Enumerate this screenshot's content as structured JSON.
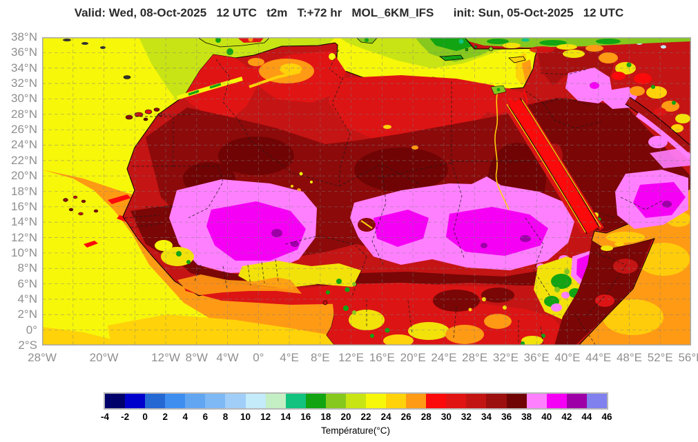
{
  "title": {
    "text": "Valid: Wed, 08-Oct-2025   12 UTC   t2m   T:+72 hr   MOL_6KM_IFS      init: Sun, 05-Oct-2025   12 UTC"
  },
  "axes": {
    "lat_labels": [
      "38°N",
      "36°N",
      "34°N",
      "32°N",
      "30°N",
      "28°N",
      "26°N",
      "24°N",
      "22°N",
      "20°N",
      "18°N",
      "16°N",
      "14°N",
      "12°N",
      "10°N",
      "8°N",
      "6°N",
      "4°N",
      "2°N",
      "0°",
      "2°S"
    ],
    "lon_ticks": [
      {
        "label": "28°W",
        "lon": -28
      },
      {
        "label": "20°W",
        "lon": -20
      },
      {
        "label": "12°W",
        "lon": -12
      },
      {
        "label": "8°W",
        "lon": -8
      },
      {
        "label": "4°W",
        "lon": -4
      },
      {
        "label": "0°",
        "lon": 0
      },
      {
        "label": "4°E",
        "lon": 4
      },
      {
        "label": "8°E",
        "lon": 8
      },
      {
        "label": "12°E",
        "lon": 12
      },
      {
        "label": "16°E",
        "lon": 16
      },
      {
        "label": "20°E",
        "lon": 20
      },
      {
        "label": "24°E",
        "lon": 24
      },
      {
        "label": "28°E",
        "lon": 28
      },
      {
        "label": "32°E",
        "lon": 32
      },
      {
        "label": "36°E",
        "lon": 36
      },
      {
        "label": "40°E",
        "lon": 40
      },
      {
        "label": "44°E",
        "lon": 44
      },
      {
        "label": "48°E",
        "lon": 48
      },
      {
        "label": "52°E",
        "lon": 52
      },
      {
        "label": "56°E",
        "lon": 56
      }
    ],
    "lon_range": [
      -28,
      56
    ],
    "lat_range": [
      -2,
      38
    ],
    "grid": {
      "lon_step": 4,
      "lat_step": 2
    }
  },
  "colorbar": {
    "caption": "Température(°C)",
    "unit": "°C",
    "tick_values": [
      -4,
      -2,
      0,
      2,
      4,
      6,
      8,
      10,
      12,
      14,
      16,
      18,
      20,
      22,
      24,
      26,
      28,
      30,
      32,
      34,
      36,
      38,
      40,
      42,
      44,
      46
    ],
    "cells": [
      {
        "from": -4,
        "to": -2,
        "color": "#00006B"
      },
      {
        "from": -2,
        "to": 0,
        "color": "#0000CD"
      },
      {
        "from": 0,
        "to": 2,
        "color": "#2468D4"
      },
      {
        "from": 2,
        "to": 4,
        "color": "#3E8EF0"
      },
      {
        "from": 4,
        "to": 6,
        "color": "#62A6F2"
      },
      {
        "from": 6,
        "to": 8,
        "color": "#7EB8F5"
      },
      {
        "from": 8,
        "to": 10,
        "color": "#A0CEF8"
      },
      {
        "from": 10,
        "to": 12,
        "color": "#C4EBFA"
      },
      {
        "from": 12,
        "to": 14,
        "color": "#C4EFC4"
      },
      {
        "from": 14,
        "to": 16,
        "color": "#12C380"
      },
      {
        "from": 16,
        "to": 18,
        "color": "#12A412"
      },
      {
        "from": 18,
        "to": 20,
        "color": "#86C81E"
      },
      {
        "from": 20,
        "to": 22,
        "color": "#C8E414"
      },
      {
        "from": 22,
        "to": 24,
        "color": "#F7F70A"
      },
      {
        "from": 24,
        "to": 26,
        "color": "#FFD20A"
      },
      {
        "from": 26,
        "to": 28,
        "color": "#FF9A14"
      },
      {
        "from": 28,
        "to": 30,
        "color": "#FA0A0A"
      },
      {
        "from": 30,
        "to": 32,
        "color": "#E11414"
      },
      {
        "from": 32,
        "to": 34,
        "color": "#C31414"
      },
      {
        "from": 34,
        "to": 36,
        "color": "#9C0F0F"
      },
      {
        "from": 36,
        "to": 38,
        "color": "#700404"
      },
      {
        "from": 38,
        "to": 40,
        "color": "#FF80FF"
      },
      {
        "from": 40,
        "to": 42,
        "color": "#F500F5"
      },
      {
        "from": 42,
        "to": 44,
        "color": "#9E00A8"
      },
      {
        "from": 44,
        "to": 46,
        "color": "#8080EE"
      }
    ]
  }
}
